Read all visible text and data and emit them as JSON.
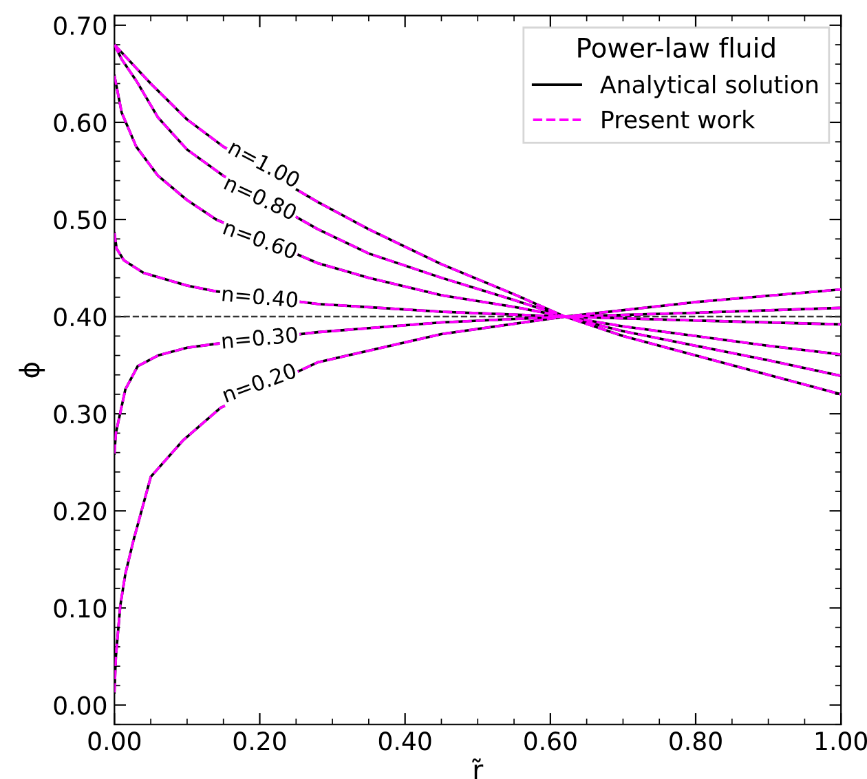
{
  "chart_data": {
    "type": "line",
    "xlabel": "r̃",
    "ylabel": "ϕ",
    "legend_title": "Power-law fluid",
    "legend": "top right",
    "grid": false,
    "xlim": [
      0,
      1
    ],
    "xticks": [
      {
        "value": 0,
        "label": "0.00"
      },
      {
        "value": 0.2,
        "label": "0.20"
      },
      {
        "value": 0.4,
        "label": "0.40"
      },
      {
        "value": 0.6,
        "label": "0.60"
      },
      {
        "value": 0.8,
        "label": "0.80"
      },
      {
        "value": 1,
        "label": "1.00"
      }
    ],
    "ylim": [
      -0.02,
      0.71
    ],
    "yticks": [
      {
        "value": 0,
        "label": "0.00"
      },
      {
        "value": 0.1,
        "label": "0.10"
      },
      {
        "value": 0.2,
        "label": "0.20"
      },
      {
        "value": 0.3,
        "label": "0.30"
      },
      {
        "value": 0.4,
        "label": "0.40"
      },
      {
        "value": 0.5,
        "label": "0.50"
      },
      {
        "value": 0.6,
        "label": "0.60"
      },
      {
        "value": 0.7,
        "label": "0.70"
      }
    ],
    "ref_lines": [
      {
        "axis": "y",
        "value": 0.4,
        "color": "#333333",
        "line_style": "dashed"
      }
    ],
    "annotations": [
      "n=1.00",
      "n=0.80",
      "n=0.60",
      "n=0.40",
      "n=0.30",
      "n=0.20"
    ],
    "series": [
      {
        "name": "Analytical solution",
        "color": "#000000",
        "line_style": "solid",
        "x": [
          0,
          0.05,
          0.1,
          0.15,
          0.28,
          0.35,
          0.45,
          0.55,
          0.62,
          0.7,
          0.8,
          0.9,
          1.0
        ],
        "values": [
          0.68,
          0.64,
          0.603,
          0.575,
          0.518,
          0.49,
          0.454,
          0.423,
          0.4,
          0.38,
          0.36,
          0.34,
          0.32
        ]
      },
      {
        "color": "#000000",
        "line_style": "solid",
        "x": [
          0,
          0.01,
          0.03,
          0.06,
          0.1,
          0.15,
          0.28,
          0.35,
          0.45,
          0.55,
          0.62,
          0.7,
          0.8,
          0.9,
          1.0
        ],
        "values": [
          0.68,
          0.665,
          0.643,
          0.605,
          0.572,
          0.545,
          0.49,
          0.465,
          0.44,
          0.417,
          0.4,
          0.385,
          0.37,
          0.355,
          0.339
        ]
      },
      {
        "color": "#000000",
        "line_style": "solid",
        "x": [
          0,
          0.01,
          0.03,
          0.06,
          0.1,
          0.14,
          0.28,
          0.35,
          0.45,
          0.55,
          0.62,
          0.7,
          0.8,
          0.9,
          1.0
        ],
        "values": [
          0.648,
          0.61,
          0.575,
          0.545,
          0.52,
          0.5,
          0.455,
          0.44,
          0.422,
          0.41,
          0.4,
          0.39,
          0.38,
          0.37,
          0.361
        ]
      },
      {
        "color": "#000000",
        "line_style": "solid",
        "x": [
          0,
          0.003,
          0.013,
          0.04,
          0.1,
          0.14,
          0.28,
          0.45,
          0.62,
          0.8,
          1.0
        ],
        "values": [
          0.486,
          0.47,
          0.458,
          0.445,
          0.432,
          0.426,
          0.413,
          0.405,
          0.4,
          0.396,
          0.392
        ]
      },
      {
        "color": "#000000",
        "line_style": "solid",
        "x": [
          0,
          0.002,
          0.006,
          0.015,
          0.032,
          0.06,
          0.1,
          0.14,
          0.28,
          0.45,
          0.62,
          0.8,
          1.0
        ],
        "values": [
          0.259,
          0.28,
          0.294,
          0.325,
          0.349,
          0.36,
          0.368,
          0.372,
          0.384,
          0.394,
          0.4,
          0.404,
          0.409
        ]
      },
      {
        "color": "#000000",
        "line_style": "solid",
        "x": [
          0,
          0.002,
          0.008,
          0.015,
          0.026,
          0.05,
          0.095,
          0.146,
          0.28,
          0.45,
          0.62,
          0.8,
          1.0
        ],
        "values": [
          0.013,
          0.05,
          0.102,
          0.135,
          0.169,
          0.235,
          0.273,
          0.306,
          0.353,
          0.382,
          0.4,
          0.415,
          0.428
        ]
      },
      {
        "name": "Present work",
        "color": "#ff00ff",
        "line_style": "dashed",
        "x": [
          0,
          0.05,
          0.1,
          0.15,
          0.28,
          0.35,
          0.45,
          0.55,
          0.62,
          0.7,
          0.8,
          0.9,
          1.0
        ],
        "values": [
          0.68,
          0.64,
          0.603,
          0.575,
          0.518,
          0.49,
          0.454,
          0.423,
          0.4,
          0.38,
          0.36,
          0.34,
          0.32
        ]
      },
      {
        "color": "#ff00ff",
        "line_style": "dashed",
        "x": [
          0,
          0.01,
          0.03,
          0.06,
          0.1,
          0.15,
          0.28,
          0.35,
          0.45,
          0.55,
          0.62,
          0.7,
          0.8,
          0.9,
          1.0
        ],
        "values": [
          0.68,
          0.665,
          0.643,
          0.605,
          0.572,
          0.545,
          0.49,
          0.465,
          0.44,
          0.417,
          0.4,
          0.385,
          0.37,
          0.355,
          0.339
        ]
      },
      {
        "color": "#ff00ff",
        "line_style": "dashed",
        "x": [
          0,
          0.01,
          0.03,
          0.06,
          0.1,
          0.14,
          0.28,
          0.35,
          0.45,
          0.55,
          0.62,
          0.7,
          0.8,
          0.9,
          1.0
        ],
        "values": [
          0.648,
          0.61,
          0.575,
          0.545,
          0.52,
          0.5,
          0.455,
          0.44,
          0.422,
          0.41,
          0.4,
          0.39,
          0.38,
          0.37,
          0.361
        ]
      },
      {
        "color": "#ff00ff",
        "line_style": "dashed",
        "x": [
          0,
          0.003,
          0.013,
          0.04,
          0.1,
          0.14,
          0.28,
          0.45,
          0.62,
          0.8,
          1.0
        ],
        "values": [
          0.486,
          0.47,
          0.458,
          0.445,
          0.432,
          0.426,
          0.413,
          0.405,
          0.4,
          0.396,
          0.392
        ]
      },
      {
        "color": "#ff00ff",
        "line_style": "dashed",
        "x": [
          0,
          0.002,
          0.006,
          0.015,
          0.032,
          0.06,
          0.1,
          0.14,
          0.28,
          0.45,
          0.62,
          0.8,
          1.0
        ],
        "values": [
          0.259,
          0.28,
          0.294,
          0.325,
          0.349,
          0.36,
          0.368,
          0.372,
          0.384,
          0.394,
          0.4,
          0.404,
          0.409
        ]
      },
      {
        "color": "#ff00ff",
        "line_style": "dashed",
        "x": [
          0,
          0.002,
          0.008,
          0.015,
          0.026,
          0.05,
          0.095,
          0.146,
          0.28,
          0.45,
          0.62,
          0.8,
          1.0
        ],
        "values": [
          0.013,
          0.05,
          0.102,
          0.135,
          0.169,
          0.235,
          0.273,
          0.306,
          0.353,
          0.382,
          0.4,
          0.415,
          0.428
        ]
      }
    ]
  }
}
